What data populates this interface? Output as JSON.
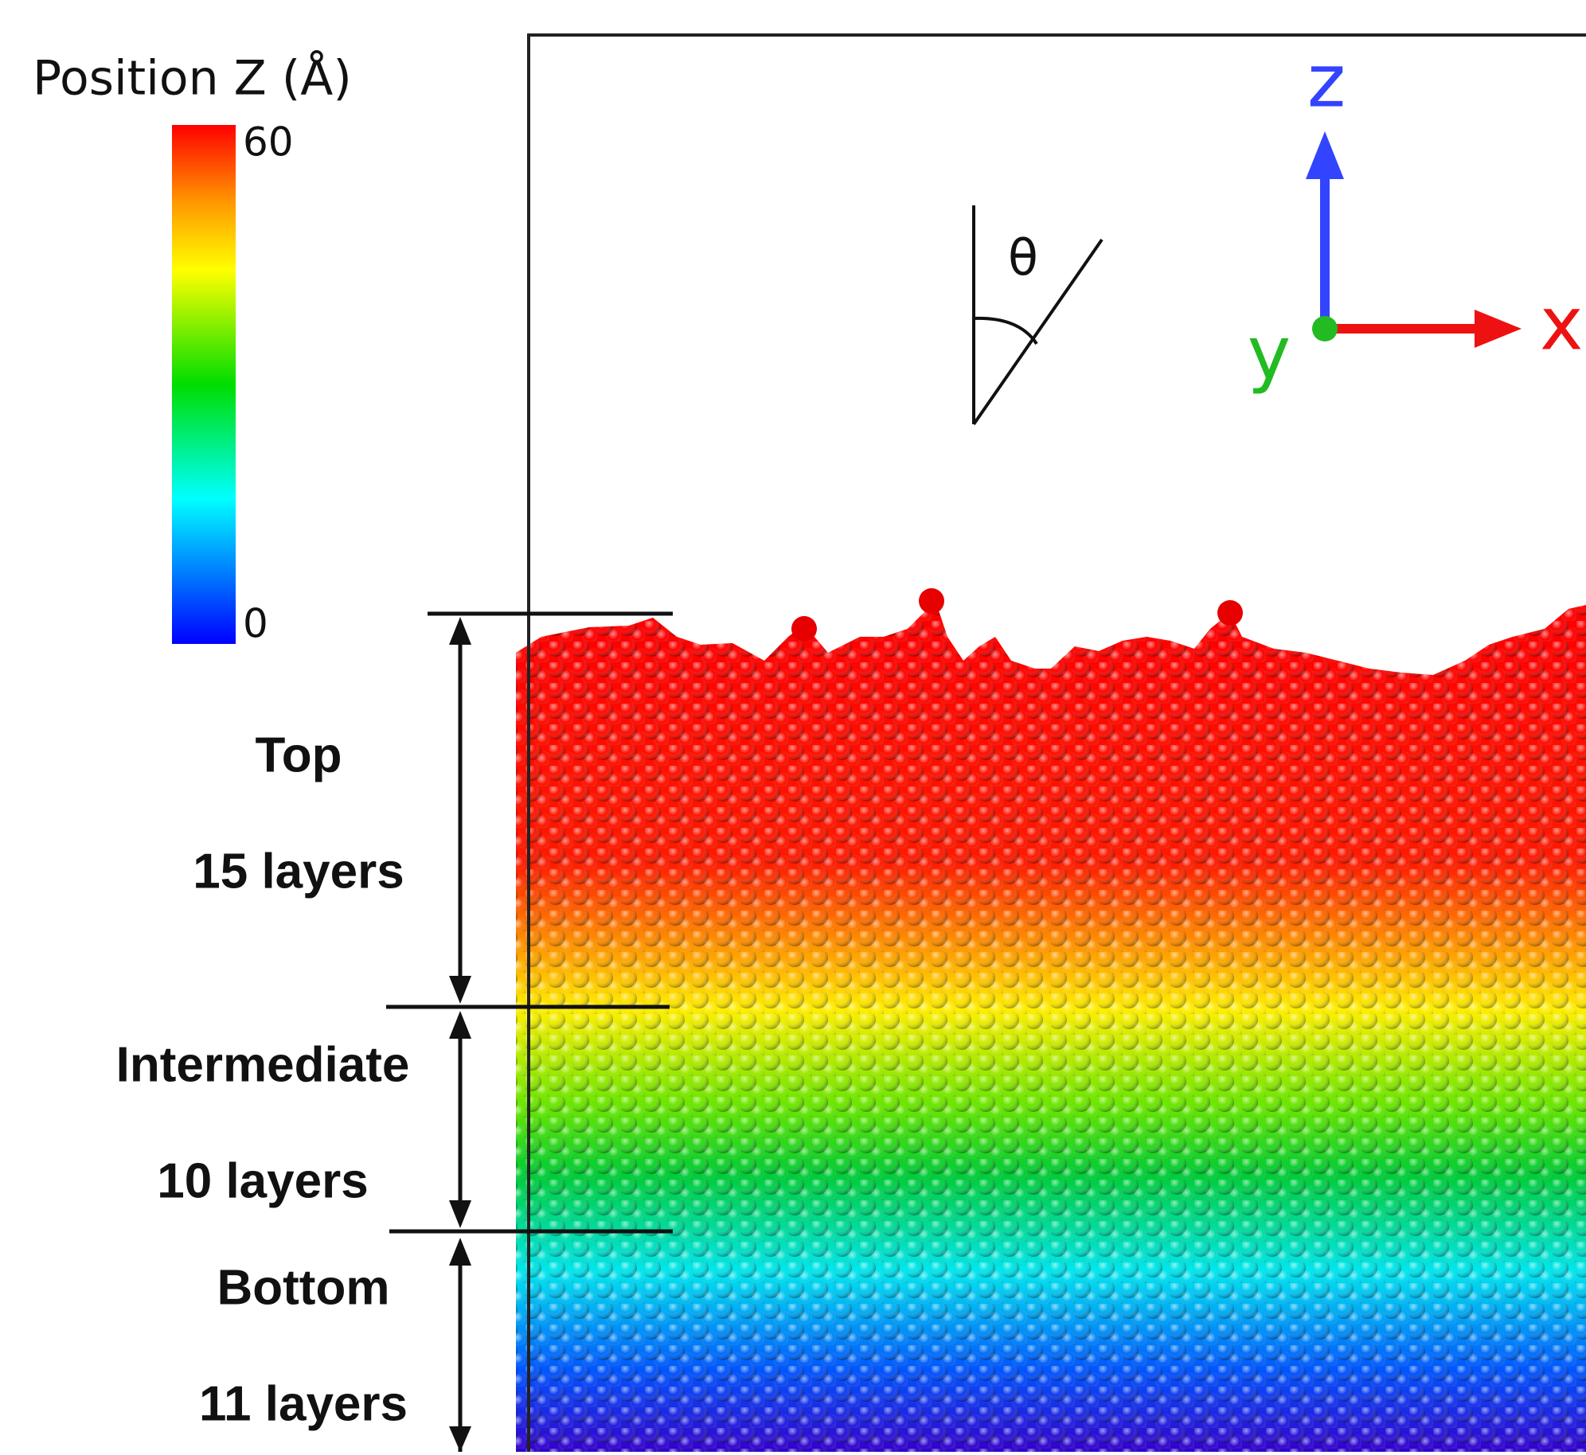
{
  "colorbar": {
    "title": "Position Z (Å)",
    "max_label": "60",
    "min_label": "0"
  },
  "angle_label": "θ",
  "axes": {
    "z": "z",
    "x": "x",
    "y": "y"
  },
  "sections": [
    {
      "name": "Top",
      "layers": "15 layers"
    },
    {
      "name": "Intermediate",
      "layers": "10 layers"
    },
    {
      "name": "Bottom",
      "layers": "11 layers"
    }
  ]
}
